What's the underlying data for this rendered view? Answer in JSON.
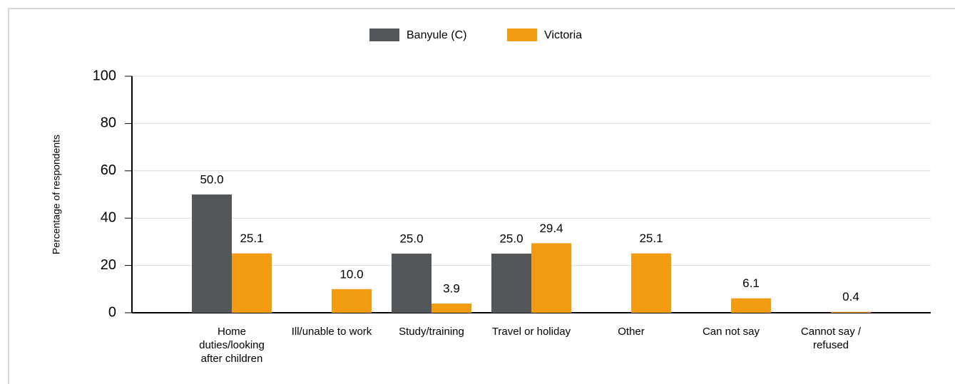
{
  "chart_data": {
    "type": "bar",
    "ylabel": "Percentage of respondents",
    "categories": [
      "Home duties/looking after children",
      "Ill/unable to work",
      "Study/training",
      "Travel or holiday",
      "Other",
      "Can not say",
      "Cannot say / refused"
    ],
    "series": [
      {
        "name": "Banyule (C)",
        "color": "#54575a",
        "values": [
          50,
          null,
          25,
          25,
          null,
          null,
          null
        ],
        "value_labels": [
          "50.0",
          null,
          "25.0",
          "25.0",
          null,
          null,
          null
        ]
      },
      {
        "name": "Victoria",
        "color": "#f39c12",
        "values": [
          25.1,
          10,
          3.9,
          29.4,
          25.1,
          6.1,
          0.4
        ],
        "value_labels": [
          "25.1",
          "10.0",
          "3.9",
          "29.4",
          "25.1",
          "6.1",
          "0.4"
        ]
      }
    ],
    "ylim": [
      0,
      100
    ],
    "yticks": [
      0,
      20,
      40,
      60,
      80,
      100
    ],
    "grid": true,
    "legend": "top"
  }
}
